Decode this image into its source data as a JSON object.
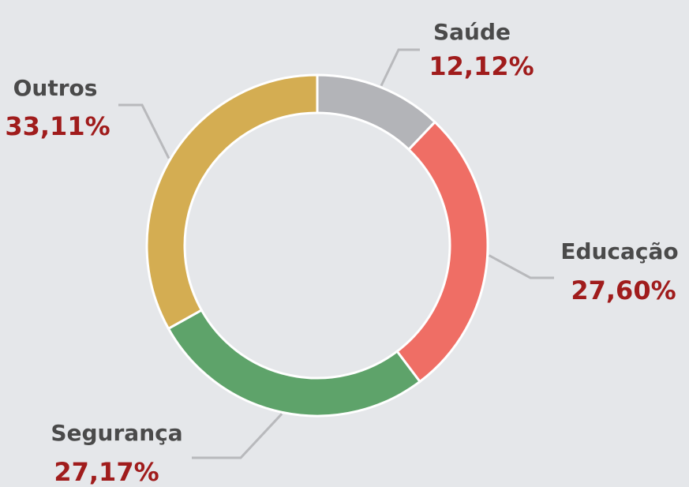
{
  "chart_data": {
    "type": "donut",
    "categories": [
      "Saúde",
      "Educação",
      "Segurança",
      "Outros"
    ],
    "values": [
      12.12,
      27.6,
      27.17,
      33.11
    ],
    "value_labels": [
      "12,12%",
      "27,60%",
      "27,17%",
      "33,11%"
    ],
    "colors": [
      "#b3b4b8",
      "#ef6e65",
      "#5ea36a",
      "#d4ad52"
    ]
  }
}
